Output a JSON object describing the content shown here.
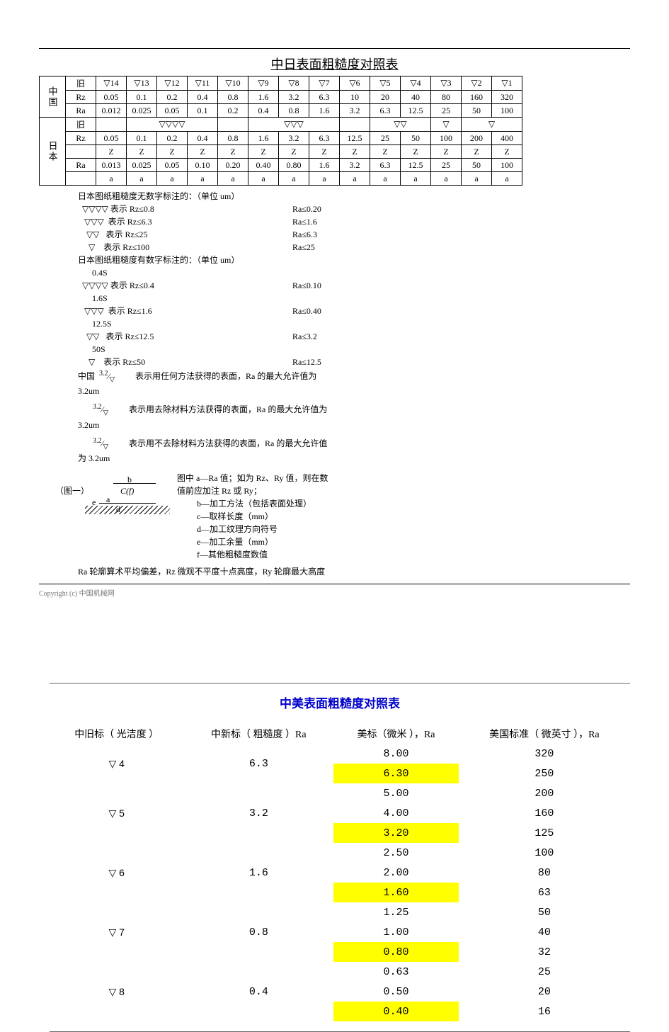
{
  "hr_color": "#000000",
  "t1": {
    "title": "中日表面粗糙度对照表",
    "group_cn": "中国",
    "group_jp": "日本",
    "row_labels": {
      "old": "旧",
      "rz": "Rz",
      "ra": "Ra",
      "z": "",
      "a": ""
    },
    "cn_old": [
      "▽14",
      "▽13",
      "▽12",
      "▽11",
      "▽10",
      "▽9",
      "▽8",
      "▽7",
      "▽6",
      "▽5",
      "▽4",
      "▽3",
      "▽2",
      "▽1"
    ],
    "cn_rz": [
      "0.05",
      "0.1",
      "0.2",
      "0.4",
      "0.8",
      "1.6",
      "3.2",
      "6.3",
      "10",
      "20",
      "40",
      "80",
      "160",
      "320"
    ],
    "cn_ra": [
      "0.012",
      "0.025",
      "0.05",
      "0.1",
      "0.2",
      "0.4",
      "0.8",
      "1.6",
      "3.2",
      "6.3",
      "12.5",
      "25",
      "50",
      "100"
    ],
    "jp_old": [
      "",
      "▽▽▽▽",
      "",
      "▽▽▽",
      "",
      "▽▽",
      "▽",
      "▽"
    ],
    "jp_rz": [
      "0.05",
      "0.1",
      "0.2",
      "0.4",
      "0.8",
      "1.6",
      "3.2",
      "6.3",
      "12.5",
      "25",
      "50",
      "100",
      "200",
      "400"
    ],
    "jp_z": [
      "Z",
      "Z",
      "Z",
      "Z",
      "Z",
      "Z",
      "Z",
      "Z",
      "Z",
      "Z",
      "Z",
      "Z",
      "Z",
      "Z"
    ],
    "jp_ra": [
      "0.013",
      "0.025",
      "0.05",
      "0.10",
      "0.20",
      "0.40",
      "0.80",
      "1.6",
      "3.2",
      "6.3",
      "12.5",
      "25",
      "50",
      "100"
    ],
    "jp_a": [
      "a",
      "a",
      "a",
      "a",
      "a",
      "a",
      "a",
      "a",
      "a",
      "a",
      "a",
      "a",
      "a",
      "a"
    ]
  },
  "notes": {
    "heading_nonum": "日本图纸粗糙度无数字标注的：（单位 um）",
    "nonum": [
      {
        "sym": "▽▽▽▽",
        "rz": "表示 Rz≤0.8",
        "ra": "Ra≤0.20"
      },
      {
        "sym": "▽▽▽",
        "rz": "表示 Rz≤6.3",
        "ra": "Ra≤1.6"
      },
      {
        "sym": "▽▽",
        "rz": "表示 Rz≤25",
        "ra": "Ra≤6.3"
      },
      {
        "sym": "▽",
        "rz": "表示 Rz≤100",
        "ra": "Ra≤25"
      }
    ],
    "heading_num": "日本图纸粗糙度有数字标注的：（单位 um）",
    "num": [
      {
        "s": "0.4S",
        "sym": "▽▽▽▽",
        "rz": "表示 Rz≤0.4",
        "ra": "Ra≤0.10"
      },
      {
        "s": "1.6S",
        "sym": "▽▽▽",
        "rz": "表示 Rz≤1.6",
        "ra": "Ra≤0.40"
      },
      {
        "s": "12.5S",
        "sym": "▽▽",
        "rz": "表示 Rz≤12.5",
        "ra": "Ra≤3.2"
      },
      {
        "s": "50S",
        "sym": "▽",
        "rz": "表示 Rz≤50",
        "ra": "Ra≤12.5"
      }
    ],
    "cn_label": "中国",
    "cn_lines": [
      "表示用任何方法获得的表面，Ra 的最大允许值为 3.2um",
      "表示用去除材料方法获得的表面，Ra 的最大允许值为 3.2um",
      "表示用不去除材料方法获得的表面，Ra 的最大允许值为 3.2um"
    ],
    "cn_syms": [
      "3.2/▽",
      "3.2/▽",
      "3.2/▽"
    ],
    "fig_label": "（图一）",
    "fig_letters": {
      "a": "a",
      "b": "b",
      "c": "C(f)",
      "d": "d",
      "e": "e"
    },
    "fig_head": "图中",
    "fig_items": [
      "a—Ra 值；如为 Rz、Ry 值，则在数值前应加注 Rz 或 Ry；",
      "b—加工方法（包括表面处理）",
      "c—取样长度（mm）",
      "d—加工纹理方向符号",
      "e—加工余量（mm）",
      "f—其他粗糙度数值"
    ],
    "footer": "Ra 轮廓算术平均偏差，Rz 微观不平度十点高度，Ry 轮廓最大高度"
  },
  "copyright": "Copyright (c) 中国机械网",
  "t2": {
    "title": "中美表面粗糙度对照表",
    "headers": [
      "中旧标（ 光洁度 ）",
      "中新标（ 粗糙度 ）Ra",
      "美标（微米 ），Ra",
      "美国标准（ 微英寸 ），Ra"
    ],
    "highlight_color": "#ffff00",
    "groups": [
      {
        "cn_old": "▽ 4",
        "cn_new": "6.3",
        "rows": [
          {
            "us": "8.00",
            "usinch": "320",
            "hl": false
          },
          {
            "us": "6.30",
            "usinch": "250",
            "hl": true
          }
        ]
      },
      {
        "cn_old": "▽ 5",
        "cn_new": "3.2",
        "rows": [
          {
            "us": "5.00",
            "usinch": "200",
            "hl": false
          },
          {
            "us": "4.00",
            "usinch": "160",
            "hl": false
          },
          {
            "us": "3.20",
            "usinch": "125",
            "hl": true
          }
        ]
      },
      {
        "cn_old": "▽ 6",
        "cn_new": "1.6",
        "rows": [
          {
            "us": "2.50",
            "usinch": "100",
            "hl": false
          },
          {
            "us": "2.00",
            "usinch": "80",
            "hl": false
          },
          {
            "us": "1.60",
            "usinch": "63",
            "hl": true
          }
        ]
      },
      {
        "cn_old": "▽ 7",
        "cn_new": "0.8",
        "rows": [
          {
            "us": "1.25",
            "usinch": "50",
            "hl": false
          },
          {
            "us": "1.00",
            "usinch": "40",
            "hl": false
          },
          {
            "us": "0.80",
            "usinch": "32",
            "hl": true
          }
        ]
      },
      {
        "cn_old": "▽ 8",
        "cn_new": "0.4",
        "rows": [
          {
            "us": "0.63",
            "usinch": "25",
            "hl": false
          },
          {
            "us": "0.50",
            "usinch": "20",
            "hl": false
          },
          {
            "us": "0.40",
            "usinch": "16",
            "hl": true
          }
        ]
      }
    ]
  }
}
